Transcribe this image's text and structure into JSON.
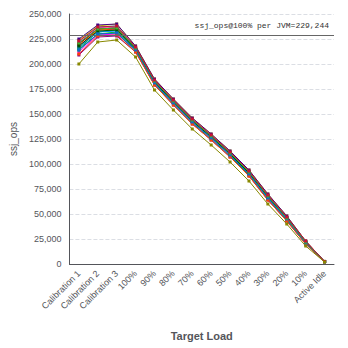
{
  "chart_data": {
    "type": "line",
    "xlabel": "Target Load",
    "ylabel": "ssj_ops",
    "categories": [
      "Calibration 1",
      "Calibration 2",
      "Calibration 3",
      "100%",
      "90%",
      "80%",
      "70%",
      "60%",
      "50%",
      "40%",
      "30%",
      "20%",
      "10%",
      "Active Idle"
    ],
    "ylim": [
      0,
      250000
    ],
    "yticks": [
      0,
      {
        "value": 25000,
        "label": "25,000"
      },
      {
        "value": 50000,
        "label": "50,000"
      },
      {
        "value": 75000,
        "label": "75,000"
      },
      {
        "value": 100000,
        "label": "100,000"
      },
      {
        "value": 125000,
        "label": "125,000"
      },
      {
        "value": 150000,
        "label": "150,000"
      },
      {
        "value": 175000,
        "label": "175,000"
      },
      {
        "value": 200000,
        "label": "200,000"
      },
      {
        "value": 225000,
        "label": "225,000"
      },
      {
        "value": 250000,
        "label": "250,000"
      }
    ],
    "grid": true,
    "marker": "square",
    "reference_line": {
      "value": 229244,
      "label": "ssj_ops@100% per JVM=229,244"
    },
    "series": [
      {
        "color": "#0000cc",
        "values": [
          221000,
          236000,
          237000,
          215000,
          183000,
          163000,
          144000,
          128000,
          111000,
          92000,
          68000,
          46000,
          22000,
          2500
        ]
      },
      {
        "color": "#00aa00",
        "values": [
          216000,
          232000,
          234000,
          216000,
          183000,
          163000,
          144000,
          128000,
          111000,
          92000,
          68000,
          46000,
          22000,
          2400
        ]
      },
      {
        "color": "#ff0000",
        "values": [
          218000,
          234000,
          235000,
          216000,
          183000,
          163000,
          144000,
          128000,
          111000,
          92000,
          68000,
          46000,
          22000,
          2400
        ]
      },
      {
        "color": "#00cccc",
        "values": [
          222000,
          237000,
          238000,
          216000,
          183000,
          163000,
          144000,
          128000,
          111000,
          92000,
          68000,
          46000,
          22000,
          2500
        ]
      },
      {
        "color": "#ff00ff",
        "values": [
          212000,
          229000,
          230000,
          214000,
          181000,
          161000,
          142000,
          126000,
          109000,
          90000,
          66000,
          44000,
          21000,
          2300
        ]
      },
      {
        "color": "#cccc00",
        "values": [
          224000,
          238000,
          240000,
          218000,
          185000,
          165000,
          146000,
          130000,
          113000,
          94000,
          70000,
          48000,
          23000,
          2600
        ]
      },
      {
        "color": "#880088",
        "values": [
          209000,
          227000,
          228000,
          212000,
          179000,
          159000,
          140000,
          124000,
          107000,
          88000,
          64000,
          43000,
          20000,
          2200
        ]
      },
      {
        "color": "#ff8800",
        "values": [
          220000,
          234000,
          236000,
          216000,
          183000,
          163000,
          144000,
          128000,
          111000,
          92000,
          68000,
          46000,
          22000,
          2500
        ]
      },
      {
        "color": "#00dd00",
        "values": [
          214000,
          230000,
          232000,
          215000,
          182000,
          162000,
          143000,
          127000,
          110000,
          91000,
          67000,
          45000,
          22000,
          2400
        ]
      },
      {
        "color": "#ff69b4",
        "values": [
          222000,
          236000,
          237000,
          216000,
          183000,
          163000,
          144000,
          128000,
          111000,
          92000,
          68000,
          46000,
          22000,
          2500
        ]
      },
      {
        "color": "#0088ff",
        "values": [
          217000,
          232000,
          233000,
          215000,
          182000,
          162000,
          143000,
          127000,
          110000,
          91000,
          67000,
          46000,
          22000,
          2400
        ]
      },
      {
        "color": "#008888",
        "values": [
          215000,
          230000,
          231000,
          213000,
          180000,
          160000,
          141000,
          125000,
          108000,
          89000,
          65000,
          44000,
          21000,
          2300
        ]
      },
      {
        "color": "#880000",
        "values": [
          220000,
          235000,
          236000,
          216000,
          183000,
          163000,
          144000,
          128000,
          111000,
          92000,
          68000,
          46000,
          22000,
          2500
        ]
      },
      {
        "color": "#005500",
        "values": [
          218000,
          233000,
          234000,
          215000,
          182000,
          162000,
          143000,
          127000,
          110000,
          91000,
          67000,
          46000,
          22000,
          2400
        ]
      },
      {
        "color": "#440088",
        "values": [
          225000,
          239000,
          240000,
          218000,
          185000,
          165000,
          146000,
          130000,
          113000,
          94000,
          70000,
          48000,
          23000,
          2600
        ]
      },
      {
        "color": "#ff4400",
        "values": [
          210000,
          228000,
          229000,
          212000,
          179000,
          159000,
          140000,
          124000,
          107000,
          88000,
          64000,
          43000,
          20000,
          2200
        ]
      },
      {
        "color": "#1166cc",
        "values": [
          214000,
          230000,
          231000,
          214000,
          181000,
          161000,
          142000,
          126000,
          109000,
          90000,
          66000,
          45000,
          21000,
          2300
        ]
      },
      {
        "color": "#33bb33",
        "values": [
          221000,
          235000,
          236000,
          216000,
          183000,
          163000,
          144000,
          128000,
          111000,
          92000,
          68000,
          46000,
          22000,
          2500
        ]
      },
      {
        "color": "#cc1133",
        "values": [
          223000,
          237000,
          238000,
          217000,
          184000,
          164000,
          145000,
          129000,
          112000,
          93000,
          69000,
          47000,
          23000,
          2500
        ]
      },
      {
        "color": "#888800",
        "values": [
          200000,
          222000,
          224000,
          207000,
          174000,
          154000,
          135000,
          119000,
          102000,
          83000,
          60000,
          40000,
          18000,
          2000
        ]
      }
    ]
  }
}
